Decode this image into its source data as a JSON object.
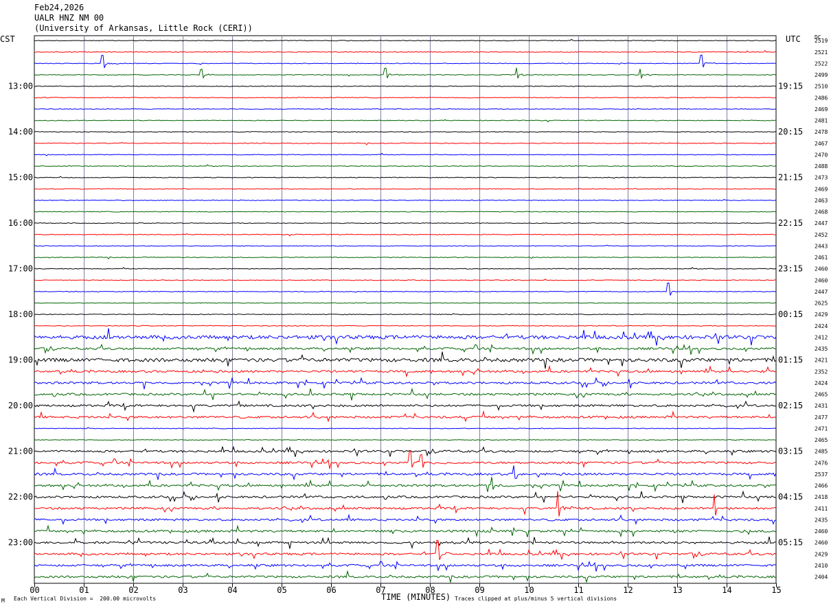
{
  "header": {
    "date": "Feb24,2026",
    "station": "UALR HNZ NM 00",
    "network": "(University of Arkansas, Little Rock (CERI))"
  },
  "left_zone_label": "CST",
  "right_zone_label": "UTC",
  "dc_header": "DC",
  "footer": {
    "scale_note": "Each Vertical Division =  200.00 microvolts",
    "xlabel": "TIME (MINUTES)",
    "clip_note": "Traces clipped at plus/minus 5 vertical divisions",
    "mark": "M"
  },
  "colors": {
    "trace_cycle": [
      "#000000",
      "#ff0000",
      "#0000ff",
      "#006400"
    ],
    "grid": "#7f7f9f"
  },
  "chart_data": {
    "type": "line",
    "title": "Feb24,2026",
    "xlabel": "TIME (MINUTES)",
    "ylabel": "",
    "xlim": [
      0,
      15
    ],
    "x_ticks": [
      "00",
      "01",
      "02",
      "03",
      "04",
      "05",
      "06",
      "07",
      "08",
      "09",
      "10",
      "11",
      "12",
      "13",
      "14",
      "15"
    ],
    "cst_labels": [
      "13:00",
      "14:00",
      "15:00",
      "16:00",
      "17:00",
      "18:00",
      "19:00",
      "20:00",
      "21:00",
      "22:00",
      "23:00"
    ],
    "utc_labels": [
      "19:15",
      "20:15",
      "21:15",
      "22:15",
      "23:15",
      "00:15",
      "01:15",
      "02:15",
      "03:15",
      "04:15",
      "05:15"
    ],
    "hour_label_trace_index": [
      4,
      8,
      12,
      16,
      20,
      24,
      28,
      32,
      36,
      40,
      44
    ],
    "dc_offsets": [
      2519,
      2521,
      2522,
      2499,
      2510,
      2486,
      2469,
      2481,
      2478,
      2467,
      2470,
      2488,
      2473,
      2469,
      2463,
      2468,
      2447,
      2452,
      2443,
      2461,
      2460,
      2460,
      2447,
      2625,
      2429,
      2424,
      2412,
      2435,
      2421,
      2352,
      2424,
      2465,
      2431,
      2477,
      2471,
      2465,
      2485,
      2476,
      2537,
      2466,
      2418,
      2411,
      2435,
      2460,
      2460,
      2429,
      2410,
      2404
    ],
    "trace_count": 48,
    "minutes_per_trace": 15,
    "noise_level": [
      1,
      1,
      1,
      1,
      1,
      1,
      1,
      1,
      1,
      1,
      1,
      1,
      1,
      1,
      1,
      1,
      1,
      1,
      1,
      1,
      1,
      1,
      1,
      1,
      1,
      1,
      3,
      2,
      3,
      2,
      2,
      2,
      2,
      2,
      1,
      1,
      2,
      2,
      2,
      2,
      2,
      2,
      2,
      2,
      2,
      2,
      2,
      2
    ],
    "events": [
      {
        "trace": 2,
        "minute": 1.38,
        "amplitude": 12
      },
      {
        "trace": 2,
        "minute": 13.48,
        "amplitude": 12
      },
      {
        "trace": 3,
        "minute": 3.38,
        "amplitude": 8
      },
      {
        "trace": 3,
        "minute": 7.1,
        "amplitude": 10
      },
      {
        "trace": 3,
        "minute": 9.75,
        "amplitude": 10
      },
      {
        "trace": 3,
        "minute": 12.25,
        "amplitude": 9
      },
      {
        "trace": 22,
        "minute": 12.82,
        "amplitude": 12
      },
      {
        "trace": 37,
        "minute": 7.6,
        "amplitude": 16
      },
      {
        "trace": 37,
        "minute": 7.82,
        "amplitude": 12
      },
      {
        "trace": 38,
        "minute": 9.7,
        "amplitude": 14
      },
      {
        "trace": 39,
        "minute": 9.25,
        "amplitude": 12
      },
      {
        "trace": 41,
        "minute": 10.58,
        "amplitude": 24
      },
      {
        "trace": 41,
        "minute": 13.75,
        "amplitude": 20
      },
      {
        "trace": 45,
        "minute": 8.15,
        "amplitude": 20
      }
    ]
  }
}
